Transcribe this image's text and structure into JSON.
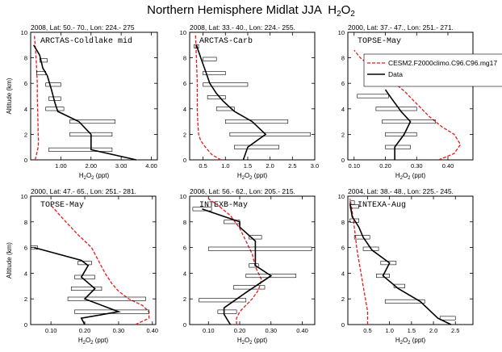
{
  "figure": {
    "title": "Northern Hemisphere Midlat JJA",
    "title_species": "H",
    "title_sub": "2",
    "title_post": "O",
    "title_sub2": "2",
    "colors": {
      "model": "#e8191c",
      "obs": "#000000"
    }
  },
  "chart_data": [
    {
      "type": "line",
      "panel_title": "2008, Lat:  50.- 70., Lon: 224.- 275",
      "label": "ARCTAS-Coldlake mid",
      "xlabel": "H2O2 (ppt)",
      "ylabel": "Altitude (km)",
      "xlim": [
        0,
        4.2
      ],
      "ylim": [
        0,
        10
      ],
      "xticks": [
        1,
        2,
        3,
        4
      ],
      "xticklabels": [
        "1.00",
        "2.00",
        "3.00",
        "4.00"
      ],
      "yticks": [
        0,
        2,
        4,
        6,
        8,
        10
      ],
      "series": [
        {
          "kind": "model",
          "x": [
            0.15,
            0.2,
            0.25,
            0.26,
            0.25,
            0.24,
            0.23,
            0.22,
            0.22,
            0.2,
            0.18,
            0.15,
            0.12
          ],
          "y": [
            0,
            0.5,
            1,
            1.5,
            2,
            3,
            4,
            5,
            6,
            7,
            8,
            9,
            9.8
          ]
        },
        {
          "kind": "obs",
          "x": [
            3.5,
            2.0,
            2.0,
            1.6,
            0.9,
            0.8,
            0.7,
            0.55,
            0.4,
            0.3,
            0.1
          ],
          "y": [
            0,
            0.8,
            2,
            3,
            3.8,
            4.5,
            5.4,
            6.6,
            7.2,
            8.2,
            9
          ]
        },
        {
          "kind": "obs_range",
          "y": [
            0.8,
            2,
            3,
            4,
            4.8,
            5.9,
            6.8,
            7.8
          ],
          "lo": [
            0.6,
            1.3,
            1.3,
            0.5,
            0.6,
            0.5,
            0.2,
            0.3
          ],
          "hi": [
            2.7,
            2.7,
            2.8,
            1.1,
            1.0,
            1.0,
            0.5,
            0.55
          ]
        }
      ]
    },
    {
      "type": "line",
      "panel_title": "2008, Lat:  33.- 40., Lon: 224.- 255.",
      "label": "ARCTAS-Carb",
      "xlabel": "H2O2 (ppt)",
      "ylabel": "",
      "xlim": [
        0.2,
        3.0
      ],
      "ylim": [
        0,
        10
      ],
      "xticks": [
        0.5,
        1.0,
        1.5,
        2.0,
        2.5,
        3.0
      ],
      "xticklabels": [
        "0.5",
        "1.0",
        "1.5",
        "2.0",
        "2.5",
        "3.0"
      ],
      "yticks": [
        0,
        2,
        4,
        6,
        8,
        10
      ],
      "series": [
        {
          "kind": "model",
          "x": [
            0.9,
            0.7,
            0.55,
            0.45,
            0.4,
            0.38,
            0.37,
            0.37,
            0.37,
            0.36,
            0.35,
            0.34,
            0.33
          ],
          "y": [
            0,
            0.4,
            1,
            1.5,
            2,
            3,
            4,
            5,
            6,
            7,
            8,
            9,
            9.8
          ]
        },
        {
          "kind": "obs",
          "x": [
            1.4,
            1.5,
            1.9,
            1.6,
            1.2,
            0.95,
            0.8,
            0.65,
            0.55,
            0.45,
            0.35
          ],
          "y": [
            0,
            1,
            2,
            3,
            3.8,
            4.6,
            5.2,
            6,
            7,
            8,
            9
          ]
        },
        {
          "kind": "obs_range",
          "y": [
            1,
            2,
            3,
            4,
            4.9,
            5.9,
            6.8,
            7.9,
            8.9
          ],
          "lo": [
            1.2,
            1.1,
            1.0,
            0.8,
            0.6,
            0.5,
            0.5,
            0.5,
            0.3
          ],
          "hi": [
            2.2,
            2.9,
            2.4,
            1.2,
            1.0,
            1.5,
            1.0,
            0.8,
            0.4
          ]
        }
      ]
    },
    {
      "type": "line",
      "panel_title": "2000, Lat:  37.- 47., Lon: 251.- 271.",
      "label": "TOPSE-May",
      "xlabel": "H2O2 (ppt)",
      "ylabel": "",
      "xlim": [
        0.08,
        0.48
      ],
      "ylim": [
        0,
        10
      ],
      "xticks": [
        0.1,
        0.2,
        0.3,
        0.4
      ],
      "xticklabels": [
        "0.10",
        "0.20",
        "0.30",
        "0.40"
      ],
      "yticks": [
        0,
        2,
        4,
        6,
        8,
        10
      ],
      "legend": {
        "position": "top-right",
        "entries": [
          "CESM2.F2000climo.C96.C96.mg17",
          "Data"
        ]
      },
      "series": [
        {
          "kind": "model",
          "name": "CESM2.F2000climo.C96.C96.mg17",
          "x": [
            0.37,
            0.42,
            0.44,
            0.42,
            0.38,
            0.34,
            0.3,
            0.26,
            0.22,
            0.17,
            0.12,
            0.1
          ],
          "y": [
            0,
            0.5,
            1.2,
            2,
            2.6,
            3.4,
            4.4,
            5.4,
            6.2,
            7,
            8,
            8.6
          ]
        },
        {
          "kind": "obs",
          "name": "Data",
          "x": [
            0.23,
            0.23,
            0.26,
            0.28,
            0.25,
            0.22,
            0.2
          ],
          "y": [
            0,
            1,
            2,
            3,
            3.8,
            4.8,
            5.5
          ]
        },
        {
          "kind": "obs_range",
          "y": [
            1,
            2,
            3,
            4,
            5
          ],
          "lo": [
            0.2,
            0.2,
            0.19,
            0.17,
            0.11
          ],
          "hi": [
            0.28,
            0.3,
            0.36,
            0.3,
            0.21
          ]
        }
      ]
    },
    {
      "type": "line",
      "panel_title": "2000, Lat:  47.- 65., Lon: 251.- 281.",
      "label": "TOPSE-May",
      "xlabel": "H2O2 (ppt)",
      "ylabel": "Altitude (km)",
      "xlim": [
        0.04,
        0.41
      ],
      "ylim": [
        0,
        10
      ],
      "xticks": [
        0.1,
        0.2,
        0.3,
        0.4
      ],
      "xticklabels": [
        "0.10",
        "0.20",
        "0.30",
        "0.40"
      ],
      "yticks": [
        0,
        2,
        4,
        6,
        8,
        10
      ],
      "series": [
        {
          "kind": "model",
          "x": [
            0.35,
            0.39,
            0.39,
            0.37,
            0.33,
            0.3,
            0.28,
            0.26,
            0.24,
            0.22,
            0.18,
            0.13,
            0.1
          ],
          "y": [
            0,
            0.5,
            1,
            1.5,
            2,
            2.6,
            3.2,
            4,
            5,
            6,
            7,
            8.4,
            9.3
          ]
        },
        {
          "kind": "obs",
          "x": [
            0.2,
            0.19,
            0.3,
            0.2,
            0.23,
            0.19,
            0.21,
            0.19,
            0.05
          ],
          "y": [
            0,
            0.5,
            1,
            2,
            2.8,
            3.7,
            4.6,
            5,
            6
          ]
        },
        {
          "kind": "obs_range",
          "y": [
            1,
            2,
            2.8,
            3.7,
            4.8,
            6
          ],
          "lo": [
            0.17,
            0.15,
            0.16,
            0.17,
            0.18,
            0.04
          ],
          "hi": [
            0.39,
            0.38,
            0.25,
            0.23,
            0.22,
            0.06
          ]
        }
      ]
    },
    {
      "type": "line",
      "panel_title": "2006, Lat:  56.- 62., Lon: 205.- 215.",
      "label": "INTEXB-May",
      "xlabel": "H2O2 (ppt)",
      "ylabel": "",
      "xlim": [
        0.04,
        0.44
      ],
      "ylim": [
        0,
        10
      ],
      "xticks": [
        0.1,
        0.2,
        0.3,
        0.4
      ],
      "xticklabels": [
        "0.10",
        "0.20",
        "0.30",
        "0.40"
      ],
      "yticks": [
        0,
        2,
        4,
        6,
        8,
        10
      ],
      "series": [
        {
          "kind": "model",
          "x": [
            0.19,
            0.19,
            0.2,
            0.22,
            0.24,
            0.26,
            0.27,
            0.25,
            0.24,
            0.22,
            0.2,
            0.17,
            0.13,
            0.1
          ],
          "y": [
            0,
            0.5,
            1,
            1.5,
            2,
            2.7,
            3.5,
            4.5,
            5.5,
            6.5,
            7.5,
            8.5,
            9.3,
            9.8
          ]
        },
        {
          "kind": "obs",
          "x": [
            0.17,
            0.15,
            0.15,
            0.22,
            0.3,
            0.25,
            0.25,
            0.25,
            0.2,
            0.2,
            0.08
          ],
          "y": [
            0,
            0.8,
            1.3,
            2.5,
            3.8,
            4.6,
            5.4,
            6.5,
            7.6,
            8,
            9
          ]
        },
        {
          "kind": "obs_range",
          "y": [
            1,
            1.9,
            2.9,
            3.8,
            4.6,
            5.9,
            6.8,
            8,
            9
          ],
          "lo": [
            0.13,
            0.07,
            0.18,
            0.22,
            0.23,
            0.1,
            0.23,
            0.15,
            0.05
          ],
          "hi": [
            0.19,
            0.22,
            0.28,
            0.38,
            0.26,
            0.43,
            0.27,
            0.2,
            0.11
          ]
        }
      ]
    },
    {
      "type": "line",
      "panel_title": "2004, Lat:  38.- 48., Lon: 225.- 245.",
      "label": "INTEXA-Aug",
      "xlabel": "H2O2 (ppt)",
      "ylabel": "",
      "xlim": [
        0.05,
        2.9
      ],
      "ylim": [
        0,
        10
      ],
      "xticks": [
        0.5,
        1.0,
        1.5,
        2.0,
        2.5
      ],
      "xticklabels": [
        "0.5",
        "1.0",
        "1.5",
        "2.0",
        "2.5"
      ],
      "yticks": [
        0,
        2,
        4,
        6,
        8,
        10
      ],
      "series": [
        {
          "kind": "model",
          "x": [
            0.5,
            0.5,
            0.45,
            0.4,
            0.35,
            0.3,
            0.25,
            0.22,
            0.18,
            0.15,
            0.12,
            0.1
          ],
          "y": [
            0,
            1,
            2,
            3,
            4,
            5,
            6,
            7,
            8,
            8.8,
            9.4,
            9.8
          ]
        },
        {
          "kind": "obs",
          "x": [
            2.4,
            2.1,
            1.7,
            1.2,
            0.85,
            1.0,
            0.6,
            0.4,
            0.3,
            0.15,
            0.1
          ],
          "y": [
            0,
            0.5,
            1.8,
            2.8,
            3.8,
            4.8,
            5.8,
            6.8,
            7.6,
            8.4,
            9.4
          ]
        },
        {
          "kind": "obs_range",
          "y": [
            0.5,
            1.8,
            3,
            3.8,
            4.8,
            5.9,
            6.8,
            8.1,
            9.2,
            9.5
          ],
          "lo": [
            2.15,
            0.9,
            1.1,
            0.7,
            0.8,
            0.4,
            0.2,
            0.1,
            0.1,
            0.1
          ],
          "hi": [
            2.5,
            1.8,
            1.35,
            1.0,
            1.15,
            0.75,
            0.55,
            0.3,
            0.3,
            0.2
          ]
        }
      ]
    }
  ]
}
